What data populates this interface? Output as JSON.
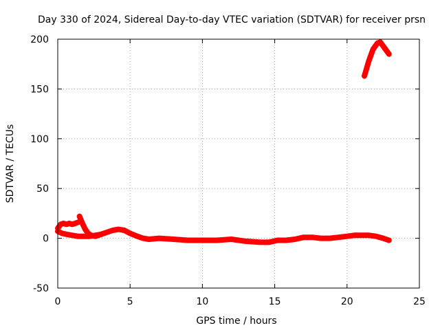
{
  "chart_data": {
    "type": "line",
    "title": "Day 330 of 2024, Sidereal Day-to-day VTEC variation (SDTVAR) for receiver prsn",
    "xlabel": "GPS time / hours",
    "ylabel": "SDTVAR / TECUs",
    "xlim": [
      0,
      25
    ],
    "ylim": [
      -50,
      200
    ],
    "xticks": [
      0,
      5,
      10,
      15,
      20,
      25
    ],
    "yticks": [
      -50,
      0,
      50,
      100,
      150,
      200
    ],
    "grid": true,
    "series_color": "#ff0000",
    "series": [
      {
        "name": "segment-1",
        "x": [
          0.0,
          0.2,
          0.4,
          0.6,
          0.8,
          1.0,
          1.2,
          1.4
        ],
        "y": [
          10,
          14,
          15,
          14,
          15,
          14,
          15,
          16
        ]
      },
      {
        "name": "segment-2",
        "x": [
          1.5,
          1.7,
          1.9,
          2.1,
          2.3,
          2.6,
          3.0
        ],
        "y": [
          22,
          15,
          9,
          5,
          3,
          2,
          4
        ]
      },
      {
        "name": "segment-3",
        "x": [
          0.0,
          0.3,
          0.6,
          1.0,
          1.4,
          1.8,
          2.2,
          2.6,
          3.0,
          3.4,
          3.8,
          4.2,
          4.6,
          5.0,
          5.5,
          5.9,
          6.3,
          7.0,
          8.0,
          9.0,
          10.0,
          11.0,
          12.0,
          13.0,
          14.0,
          14.6,
          15.2,
          15.8,
          16.4,
          17.0,
          17.6,
          18.2,
          18.8,
          19.4,
          20.0,
          20.5,
          21.0,
          21.5,
          22.0,
          22.5,
          22.9
        ],
        "y": [
          7,
          5,
          4,
          3,
          2,
          2,
          2,
          3,
          4,
          6,
          8,
          9,
          8,
          5,
          2,
          0,
          -1,
          0,
          -1,
          -2,
          -2,
          -2,
          -1,
          -3,
          -4,
          -4,
          -2,
          -2,
          -1,
          1,
          1,
          0,
          0,
          1,
          2,
          3,
          3,
          3,
          2,
          0,
          -2
        ]
      },
      {
        "name": "segment-4",
        "x": [
          21.2,
          21.5,
          21.8,
          22.1,
          22.3,
          22.6,
          22.9
        ],
        "y": [
          163,
          178,
          190,
          196,
          197,
          191,
          185
        ]
      }
    ]
  }
}
